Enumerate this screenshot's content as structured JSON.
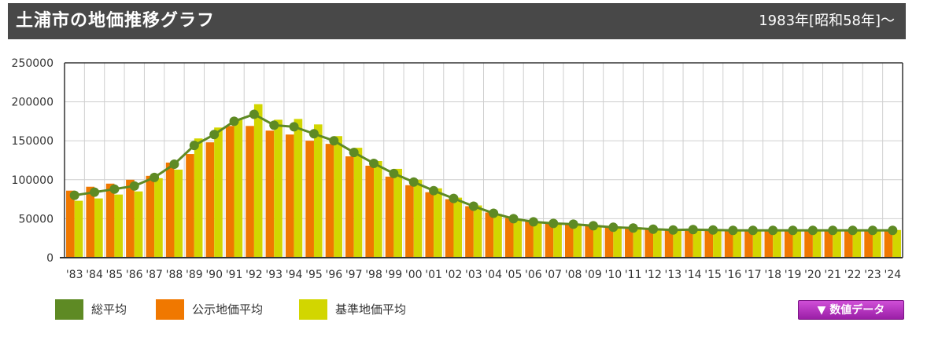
{
  "header": {
    "title": "土浦市の地価推移グラフ",
    "range": "1983年[昭和58年]～"
  },
  "legend": [
    {
      "label": "総平均",
      "color": "#5e8a24"
    },
    {
      "label": "公示地価平均",
      "color": "#f07800"
    },
    {
      "label": "基準地価平均",
      "color": "#d2d600"
    }
  ],
  "data_button": {
    "label": "▼ 数値データ"
  },
  "chart_data": {
    "type": "bar",
    "categories": [
      "'83",
      "'84",
      "'85",
      "'86",
      "'87",
      "'88",
      "'89",
      "'90",
      "'91",
      "'92",
      "'93",
      "'94",
      "'95",
      "'96",
      "'97",
      "'98",
      "'99",
      "'00",
      "'01",
      "'02",
      "'03",
      "'04",
      "'05",
      "'06",
      "'07",
      "'08",
      "'09",
      "'10",
      "'11",
      "'12",
      "'13",
      "'14",
      "'15",
      "'16",
      "'17",
      "'18",
      "'19",
      "'20",
      "'21",
      "'22",
      "'23",
      "'24"
    ],
    "ylim": [
      0,
      250000
    ],
    "yticks": [
      0,
      50000,
      100000,
      150000,
      200000,
      250000
    ],
    "grid": true,
    "series": [
      {
        "name": "公示地価平均",
        "kind": "bar",
        "color": "#f07800",
        "values": [
          86000,
          91000,
          95000,
          100000,
          105000,
          122000,
          133000,
          148000,
          169000,
          169000,
          163000,
          158000,
          150000,
          146000,
          130000,
          118000,
          104000,
          93000,
          84000,
          75000,
          66000,
          58000,
          51000,
          47000,
          45000,
          44000,
          42000,
          39000,
          37000,
          36000,
          35000,
          35000,
          35000,
          34500,
          34500,
          34500,
          34500,
          34500,
          34500,
          34500,
          34500,
          34500
        ]
      },
      {
        "name": "基準地価平均",
        "kind": "bar",
        "color": "#d2d600",
        "values": [
          73000,
          76000,
          81000,
          85000,
          102000,
          113000,
          153000,
          167000,
          178000,
          197000,
          177000,
          178000,
          171000,
          156000,
          141000,
          124000,
          114000,
          100000,
          89000,
          77000,
          67000,
          56000,
          50000,
          45000,
          43000,
          42000,
          41000,
          40000,
          39000,
          37000,
          36000,
          37000,
          36000,
          35500,
          35500,
          35500,
          35500,
          35500,
          35500,
          35500,
          35500,
          35500
        ]
      },
      {
        "name": "総平均",
        "kind": "line",
        "color": "#5e8a24",
        "values": [
          80000,
          84000,
          88000,
          92000,
          103000,
          120000,
          144000,
          158000,
          175000,
          184000,
          170000,
          168000,
          159000,
          150000,
          135000,
          121000,
          108000,
          97000,
          86000,
          76000,
          66000,
          57000,
          50000,
          46000,
          44000,
          43000,
          41000,
          39000,
          38000,
          36500,
          35500,
          36000,
          35500,
          35000,
          35000,
          35000,
          35000,
          35000,
          35000,
          35000,
          35000,
          35000
        ]
      }
    ]
  }
}
